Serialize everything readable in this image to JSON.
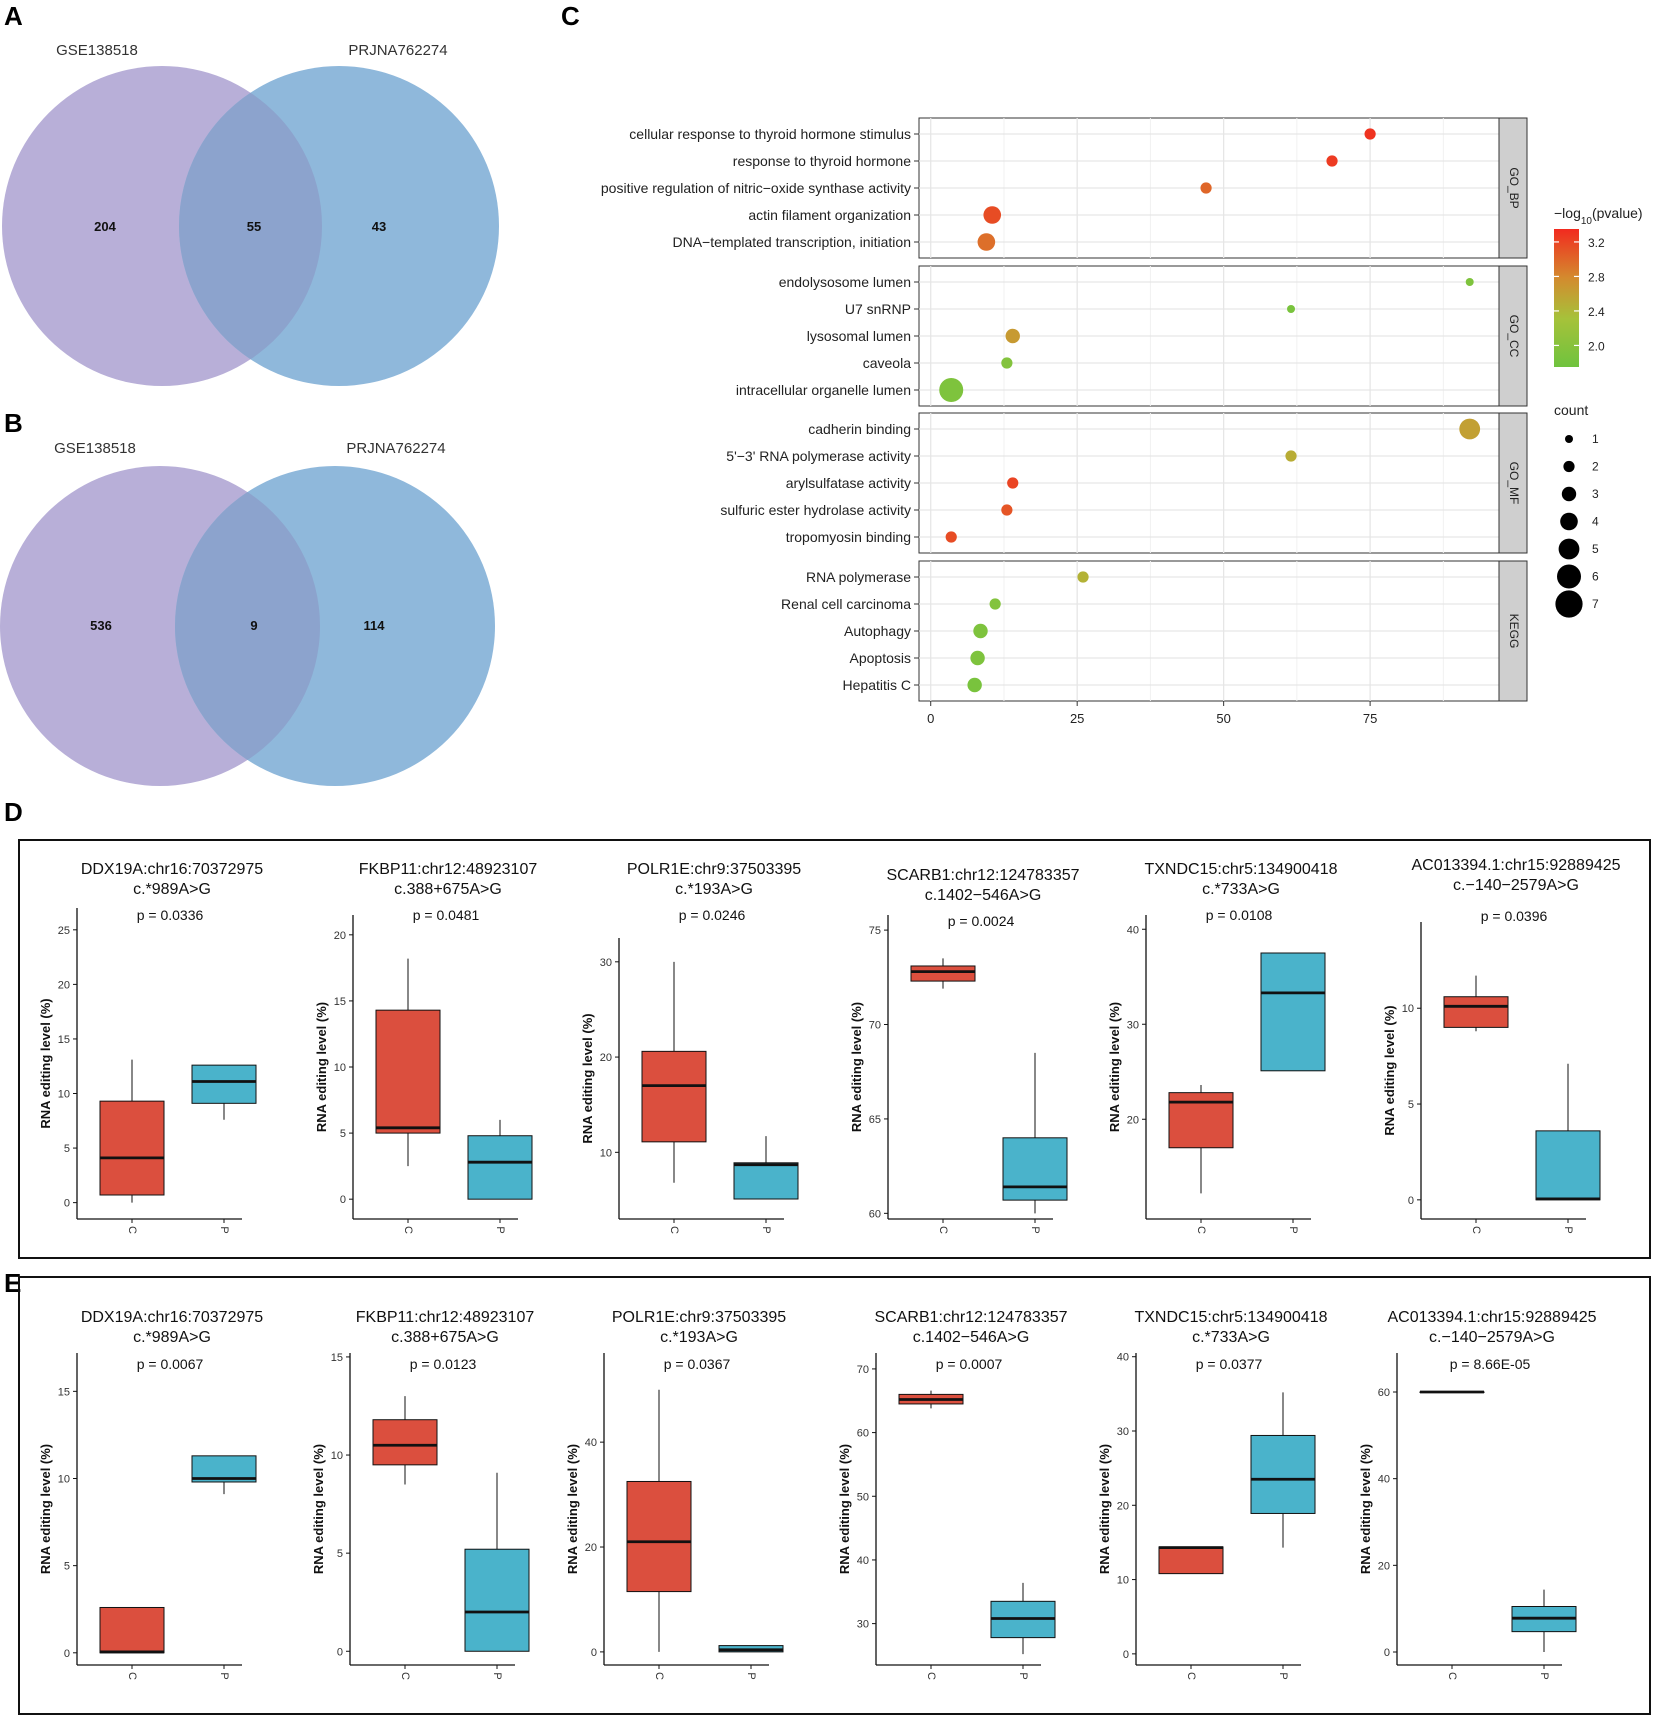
{
  "panel_labels": {
    "a": "A",
    "b": "B",
    "c": "C",
    "d": "D",
    "e": "E"
  },
  "colors": {
    "venn_left": "#b8afd8",
    "venn_right": "#8fb8db",
    "venn_overlap": "#8ca3cd",
    "box_c": "#db4f3e",
    "box_p": "#4ab3cb",
    "grid": "#e6e6e6",
    "strip": "#cfcfcf",
    "legend_size_dot": "#000000"
  },
  "venn_a": {
    "left_label": "GSE138518",
    "right_label": "PRJNA762274",
    "left_only": "204",
    "overlap": "55",
    "right_only": "43"
  },
  "venn_b": {
    "left_label": "GSE138518",
    "right_label": "PRJNA762274",
    "left_only": "536",
    "overlap": "9",
    "right_only": "114"
  },
  "chart_data": [
    {
      "id": "C",
      "type": "scatter",
      "title": "",
      "xlabel": "",
      "ylabel": "",
      "xlim": [
        -2,
        97
      ],
      "x_ticks": [
        0,
        25,
        50,
        75
      ],
      "facets": [
        {
          "name": "GO_BP",
          "terms": [
            {
              "label": "cellular response to thyroid hormone stimulus",
              "x": 75,
              "count": 2,
              "log10p": 3.3
            },
            {
              "label": "response to thyroid hormone",
              "x": 68.5,
              "count": 2,
              "log10p": 3.25
            },
            {
              "label": "positive regulation of nitric−oxide synthase activity",
              "x": 47,
              "count": 2,
              "log10p": 3.0
            },
            {
              "label": "actin filament organization",
              "x": 10.5,
              "count": 4,
              "log10p": 3.15
            },
            {
              "label": "DNA−templated transcription, initiation",
              "x": 9.5,
              "count": 4,
              "log10p": 2.95
            }
          ]
        },
        {
          "name": "GO_CC",
          "terms": [
            {
              "label": "endolysosome lumen",
              "x": 92,
              "count": 1,
              "log10p": 1.9
            },
            {
              "label": "U7 snRNP",
              "x": 61.5,
              "count": 1,
              "log10p": 1.85
            },
            {
              "label": "lysosomal lumen",
              "x": 14,
              "count": 3,
              "log10p": 2.65
            },
            {
              "label": "caveola",
              "x": 13,
              "count": 2,
              "log10p": 1.95
            },
            {
              "label": "intracellular organelle lumen",
              "x": 3.5,
              "count": 6,
              "log10p": 1.9
            }
          ]
        },
        {
          "name": "GO_MF",
          "terms": [
            {
              "label": "cadherin binding",
              "x": 92,
              "count": 5,
              "log10p": 2.6
            },
            {
              "label": "5'−3' RNA polymerase activity",
              "x": 61.5,
              "count": 2,
              "log10p": 2.5
            },
            {
              "label": "arylsulfatase activity",
              "x": 14,
              "count": 2,
              "log10p": 3.2
            },
            {
              "label": "sulfuric ester hydrolase activity",
              "x": 13,
              "count": 2,
              "log10p": 3.1
            },
            {
              "label": "tropomyosin binding",
              "x": 3.5,
              "count": 2,
              "log10p": 3.15
            }
          ]
        },
        {
          "name": "KEGG",
          "terms": [
            {
              "label": "RNA polymerase",
              "x": 26,
              "count": 2,
              "log10p": 2.45
            },
            {
              "label": "Renal cell carcinoma",
              "x": 11,
              "count": 2,
              "log10p": 1.95
            },
            {
              "label": "Autophagy",
              "x": 8.5,
              "count": 3,
              "log10p": 1.9
            },
            {
              "label": "Apoptosis",
              "x": 8,
              "count": 3,
              "log10p": 1.9
            },
            {
              "label": "Hepatitis C",
              "x": 7.5,
              "count": 3,
              "log10p": 1.85
            }
          ]
        }
      ],
      "color_legend": {
        "title_prefix": "−log",
        "title_sub": "10",
        "title_suffix": "(pvalue)",
        "range": [
          1.75,
          3.35
        ],
        "ticks": [
          2.0,
          2.4,
          2.8,
          3.2
        ],
        "tick_labels": [
          "2.0",
          "2.4",
          "2.8",
          "3.2"
        ]
      },
      "size_legend": {
        "title": "count",
        "values": [
          1,
          2,
          3,
          4,
          5,
          6,
          7
        ],
        "labels": [
          "1",
          "2",
          "3",
          "4",
          "5",
          "6",
          "7"
        ]
      }
    },
    {
      "id": "D",
      "type": "box",
      "groups": [
        "C",
        "P"
      ],
      "ylabel": "RNA editing level (%)",
      "panels": [
        {
          "title1": "DDX19A:chr16:70372975",
          "title2": "c.*989A>G",
          "p": "p = 0.0336",
          "ylim": [
            -1.5,
            27
          ],
          "ticks": [
            0,
            5,
            10,
            15,
            20,
            25
          ],
          "tick_labels": [
            "0",
            "5",
            "10",
            "15",
            "20",
            "25"
          ],
          "boxes": [
            {
              "group": "C",
              "min": 0,
              "q1": 0.7,
              "median": 4.1,
              "q3": 9.3,
              "max": 13.1
            },
            {
              "group": "P",
              "min": 7.6,
              "q1": 9.1,
              "median": 11.1,
              "q3": 12.6,
              "max": 12.6
            }
          ]
        },
        {
          "title1": "FKBP11:chr12:48923107",
          "title2": "c.388+675A>G",
          "p": "p = 0.0481",
          "ylim": [
            -1.5,
            21.5
          ],
          "ticks": [
            0,
            5,
            10,
            15,
            20
          ],
          "tick_labels": [
            "0",
            "5",
            "10",
            "15",
            "20"
          ],
          "boxes": [
            {
              "group": "C",
              "min": 2.5,
              "q1": 5.0,
              "median": 5.4,
              "q3": 14.3,
              "max": 18.2
            },
            {
              "group": "P",
              "min": 0,
              "q1": 0,
              "median": 2.8,
              "q3": 4.8,
              "max": 6.0
            }
          ]
        },
        {
          "title1": "POLR1E:chr9:37503395",
          "title2": "c.*193A>G",
          "p": "p = 0.0246",
          "ylim": [
            3,
            32.5
          ],
          "ticks": [
            10,
            20,
            30
          ],
          "tick_labels": [
            "10",
            "20",
            "30"
          ],
          "boxes": [
            {
              "group": "C",
              "min": 6.8,
              "q1": 11.1,
              "median": 17.0,
              "q3": 20.6,
              "max": 30.0
            },
            {
              "group": "P",
              "min": 5.1,
              "q1": 5.1,
              "median": 8.7,
              "q3": 8.9,
              "max": 11.7
            }
          ]
        },
        {
          "title1": "SCARB1:chr12:124783357",
          "title2": "c.1402−546A>G",
          "p": "p = 0.0024",
          "ylim": [
            59.7,
            75.8
          ],
          "ticks": [
            60,
            65,
            70,
            75
          ],
          "tick_labels": [
            "60",
            "65",
            "70",
            "75"
          ],
          "boxes": [
            {
              "group": "C",
              "min": 71.9,
              "q1": 72.3,
              "median": 72.8,
              "q3": 73.1,
              "max": 73.5
            },
            {
              "group": "P",
              "min": 60.0,
              "q1": 60.7,
              "median": 61.4,
              "q3": 64.0,
              "max": 68.5
            }
          ]
        },
        {
          "title1": "TXNDC15:chr5:134900418",
          "title2": "c.*733A>G",
          "p": "p = 0.0108",
          "ylim": [
            9.5,
            41.5
          ],
          "ticks": [
            20,
            30,
            40
          ],
          "tick_labels": [
            "20",
            "30",
            "40"
          ],
          "boxes": [
            {
              "group": "C",
              "min": 12.2,
              "q1": 17.0,
              "median": 21.8,
              "q3": 22.8,
              "max": 23.6
            },
            {
              "group": "P",
              "min": 25.1,
              "q1": 25.1,
              "median": 33.3,
              "q3": 37.5,
              "max": 37.5
            }
          ]
        },
        {
          "title1": "AC013394.1:chr15:92889425",
          "title2": "c.−140−2579A>G",
          "p": "p = 0.0396",
          "ylim": [
            -1,
            14.5
          ],
          "ticks": [
            0,
            5,
            10
          ],
          "tick_labels": [
            "0",
            "5",
            "10"
          ],
          "boxes": [
            {
              "group": "C",
              "min": 8.8,
              "q1": 9.0,
              "median": 10.1,
              "q3": 10.6,
              "max": 11.7
            },
            {
              "group": "P",
              "min": 0,
              "q1": 0,
              "median": 0.05,
              "q3": 3.6,
              "max": 7.1
            }
          ]
        }
      ]
    },
    {
      "id": "E",
      "type": "box",
      "groups": [
        "C",
        "P"
      ],
      "ylabel": "RNA editing level (%)",
      "panels": [
        {
          "title1": "DDX19A:chr16:70372975",
          "title2": "c.*989A>G",
          "p": "p = 0.0067",
          "ylim": [
            -0.7,
            17.2
          ],
          "ticks": [
            0,
            5,
            10,
            15
          ],
          "tick_labels": [
            "0",
            "5",
            "10",
            "15"
          ],
          "boxes": [
            {
              "group": "C",
              "min": 0,
              "q1": 0,
              "median": 0.05,
              "q3": 2.6,
              "max": 2.6
            },
            {
              "group": "P",
              "min": 9.1,
              "q1": 9.8,
              "median": 10.0,
              "q3": 11.3,
              "max": 11.3
            }
          ]
        },
        {
          "title1": "FKBP11:chr12:48923107",
          "title2": "c.388+675A>G",
          "p": "p = 0.0123",
          "ylim": [
            -0.7,
            15.2
          ],
          "ticks": [
            0,
            5,
            10,
            15
          ],
          "tick_labels": [
            "0",
            "5",
            "10",
            "15"
          ],
          "boxes": [
            {
              "group": "C",
              "min": 8.5,
              "q1": 9.5,
              "median": 10.5,
              "q3": 11.8,
              "max": 13.0
            },
            {
              "group": "P",
              "min": 0,
              "q1": 0,
              "median": 2.0,
              "q3": 5.2,
              "max": 9.1
            }
          ]
        },
        {
          "title1": "POLR1E:chr9:37503395",
          "title2": "c.*193A>G",
          "p": "p = 0.0367",
          "ylim": [
            -2.5,
            57
          ],
          "ticks": [
            0,
            20,
            40
          ],
          "tick_labels": [
            "0",
            "20",
            "40"
          ],
          "boxes": [
            {
              "group": "C",
              "min": 0,
              "q1": 11.5,
              "median": 21.0,
              "q3": 32.5,
              "max": 50.0
            },
            {
              "group": "P",
              "min": 0,
              "q1": 0,
              "median": 0.4,
              "q3": 1.2,
              "max": 1.2
            }
          ]
        },
        {
          "title1": "SCARB1:chr12:124783357",
          "title2": "c.1402−546A>G",
          "p": "p = 0.0007",
          "ylim": [
            23.5,
            72.5
          ],
          "ticks": [
            30,
            40,
            50,
            60,
            70
          ],
          "tick_labels": [
            "30",
            "40",
            "50",
            "60",
            "70"
          ],
          "boxes": [
            {
              "group": "C",
              "min": 63.8,
              "q1": 64.5,
              "median": 65.2,
              "q3": 66.0,
              "max": 66.6
            },
            {
              "group": "P",
              "min": 25.2,
              "q1": 27.8,
              "median": 30.8,
              "q3": 33.5,
              "max": 36.4
            }
          ]
        },
        {
          "title1": "TXNDC15:chr5:134900418",
          "title2": "c.*733A>G",
          "p": "p = 0.0377",
          "ylim": [
            -1.5,
            40.5
          ],
          "ticks": [
            0,
            10,
            20,
            30,
            40
          ],
          "tick_labels": [
            "0",
            "10",
            "20",
            "30",
            "40"
          ],
          "boxes": [
            {
              "group": "C",
              "min": 10.8,
              "q1": 10.8,
              "median": 14.3,
              "q3": 14.4,
              "max": 14.4
            },
            {
              "group": "P",
              "min": 14.3,
              "q1": 18.9,
              "median": 23.5,
              "q3": 29.4,
              "max": 35.2
            }
          ]
        },
        {
          "title1": "AC013394.1:chr15:92889425",
          "title2": "c.−140−2579A>G",
          "p": "p = 8.66E-05",
          "ylim": [
            -3,
            69
          ],
          "ticks": [
            0,
            20,
            40,
            60
          ],
          "tick_labels": [
            "0",
            "20",
            "40",
            "60"
          ],
          "boxes": [
            {
              "group": "C",
              "min": 60,
              "q1": 60,
              "median": 60,
              "q3": 60,
              "max": 60
            },
            {
              "group": "P",
              "min": 0,
              "q1": 4.7,
              "median": 7.8,
              "q3": 10.5,
              "max": 14.4
            }
          ]
        }
      ]
    }
  ]
}
